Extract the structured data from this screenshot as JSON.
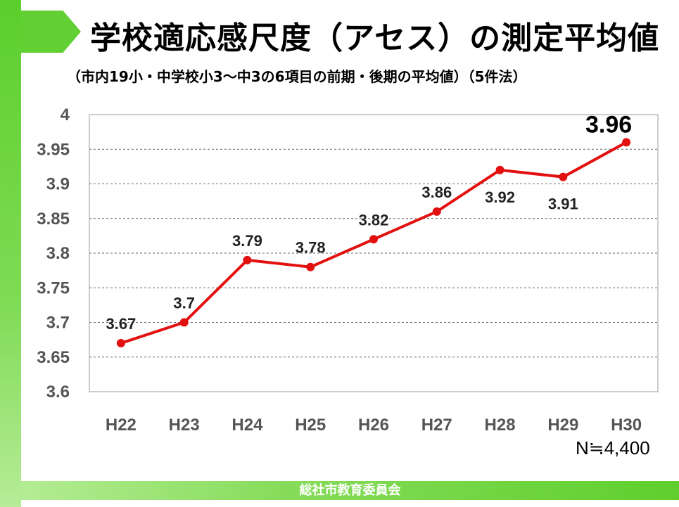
{
  "header": {
    "title": "学校適応感尺度（アセス）の測定平均値",
    "subtitle": "（市内19小・中学校小3～中3の6項目の前期・後期の平均値）（5件法）"
  },
  "note": "N≒4,400",
  "footer": "総社市教育委員会",
  "colors": {
    "line": "#e31010",
    "accent": "#5fcf2d"
  },
  "chart_data": {
    "type": "line",
    "title": "学校適応感尺度（アセス）の測定平均値",
    "categories": [
      "H22",
      "H23",
      "H24",
      "H25",
      "H26",
      "H27",
      "H28",
      "H29",
      "H30"
    ],
    "series": [
      {
        "name": "平均値",
        "values": [
          3.67,
          3.7,
          3.79,
          3.78,
          3.82,
          3.86,
          3.92,
          3.91,
          3.96
        ]
      }
    ],
    "data_labels": [
      "3.67",
      "3.7",
      "3.79",
      "3.78",
      "3.82",
      "3.86",
      "3.92",
      "3.91",
      "3.96"
    ],
    "yticks": [
      "3.6",
      "3.65",
      "3.7",
      "3.75",
      "3.8",
      "3.85",
      "3.9",
      "3.95",
      "4"
    ],
    "ylim": [
      3.6,
      4
    ],
    "grid": true,
    "xlabel": "",
    "ylabel": ""
  }
}
